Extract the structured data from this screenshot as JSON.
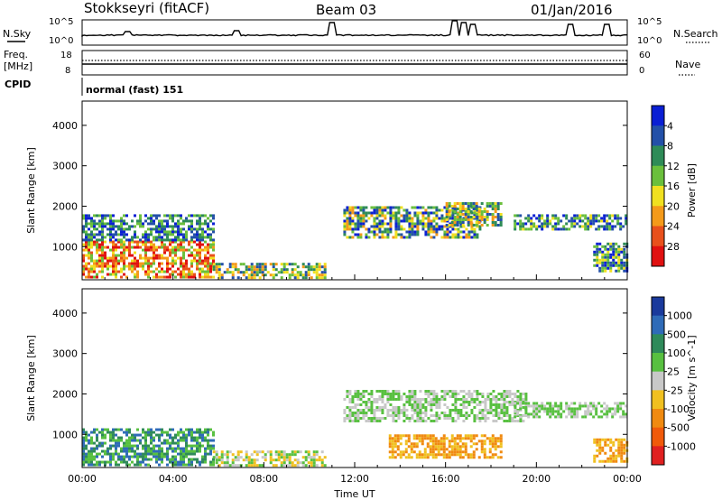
{
  "header": {
    "station": "Stokkseyri (fitACF)",
    "beam": "Beam 03",
    "date": "01/Jan/2016"
  },
  "noise_panel": {
    "left_label": "N.Sky",
    "right_label": "N.Search",
    "left_ticks": [
      "10^5",
      "10^0"
    ],
    "right_ticks": [
      "10^5",
      "10^0"
    ]
  },
  "freq_panel": {
    "left_label_line1": "Freq.",
    "left_label_line2": "[MHz]",
    "left_ticks": [
      "18",
      "8"
    ],
    "right_ticks": [
      "60",
      "0"
    ],
    "right_label": "Nave"
  },
  "cpid": {
    "label": "CPID",
    "value": "normal (fast) 151"
  },
  "chart_data": [
    {
      "type": "heatmap",
      "ylabel": "Slant Range [km]",
      "colorbar_label": "Power [dB]",
      "yticks": [
        1000,
        2000,
        3000,
        4000
      ],
      "colorbar_ticks": [
        "4",
        "8",
        "12",
        "16",
        "20",
        "24",
        "28"
      ],
      "colorbar_colors": [
        "#0a1fd4",
        "#2350a8",
        "#2e8b57",
        "#6abf3c",
        "#f0e020",
        "#f49a1a",
        "#e8501c",
        "#e01010"
      ],
      "regions": [
        {
          "start": "00:00",
          "end": "05:45",
          "range_km": [
            250,
            1150
          ],
          "level_db": "16-28"
        },
        {
          "start": "00:00",
          "end": "05:45",
          "range_km": [
            1150,
            1800
          ],
          "level_db": "4-12"
        },
        {
          "start": "05:45",
          "end": "10:45",
          "range_km": [
            250,
            600
          ],
          "level_db": "8-20"
        },
        {
          "start": "11:30",
          "end": "17:30",
          "range_km": [
            1200,
            2000
          ],
          "level_db": "4-20"
        },
        {
          "start": "16:00",
          "end": "18:30",
          "range_km": [
            1500,
            2100
          ],
          "level_db": "8-20"
        },
        {
          "start": "19:00",
          "end": "24:00",
          "range_km": [
            1400,
            1800
          ],
          "level_db": "4-16"
        },
        {
          "start": "22:30",
          "end": "24:00",
          "range_km": [
            400,
            1100
          ],
          "level_db": "4-16"
        }
      ]
    },
    {
      "type": "heatmap",
      "ylabel": "Slant Range [km]",
      "xlabel": "Time UT",
      "colorbar_label": "Velocity [m s^-1]",
      "xticks": [
        "00:00",
        "04:00",
        "08:00",
        "12:00",
        "16:00",
        "20:00",
        "00:00"
      ],
      "yticks": [
        1000,
        2000,
        3000,
        4000
      ],
      "colorbar_ticks": [
        "1000",
        "500",
        "100",
        "25",
        "-25",
        "-100",
        "-500",
        "-1000"
      ],
      "colorbar_colors": [
        "#1a3a9c",
        "#2f6bb8",
        "#2f8a5a",
        "#58c040",
        "#c8c8c8",
        "#f0c020",
        "#f08a10",
        "#f05a0a",
        "#e02020"
      ],
      "regions": [
        {
          "start": "00:00",
          "end": "05:45",
          "range_km": [
            250,
            1150
          ],
          "velocity": "25 to 500"
        },
        {
          "start": "05:45",
          "end": "10:45",
          "range_km": [
            250,
            600
          ],
          "velocity": "-100 to 25"
        },
        {
          "start": "11:30",
          "end": "19:30",
          "range_km": [
            1300,
            2100
          ],
          "velocity": "-25 to 25"
        },
        {
          "start": "13:30",
          "end": "18:30",
          "range_km": [
            400,
            1000
          ],
          "velocity": "-500 to -100"
        },
        {
          "start": "19:00",
          "end": "24:00",
          "range_km": [
            1400,
            1800
          ],
          "velocity": "-25 to 25"
        },
        {
          "start": "22:30",
          "end": "24:00",
          "range_km": [
            300,
            900
          ],
          "velocity": "-500 to -100"
        }
      ]
    }
  ]
}
